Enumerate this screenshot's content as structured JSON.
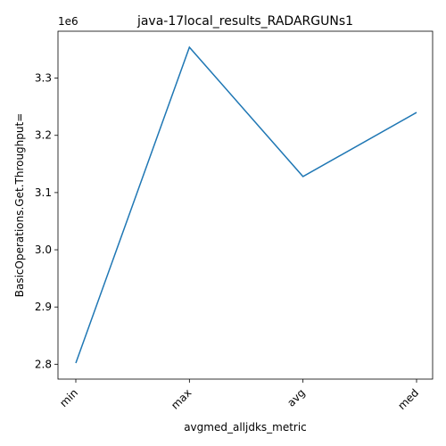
{
  "chart_data": {
    "type": "line",
    "title": "java-17local_results_RADARGUNs1",
    "xlabel": "avgmed_alljdks_metric",
    "ylabel": "BasicOperations.Get.Throughput=",
    "y_offset_text": "1e6",
    "categories": [
      "min",
      "max",
      "avg",
      "med"
    ],
    "series": [
      {
        "values": [
          2802000,
          3354000,
          3128000,
          3240000
        ],
        "color": "#1f77b4"
      }
    ],
    "ylim": [
      2774000,
      3382000
    ],
    "y_ticks": [
      2800000,
      2900000,
      3000000,
      3100000,
      3200000,
      3300000
    ],
    "y_tick_labels": [
      "2.8",
      "2.9",
      "3.0",
      "3.1",
      "3.2",
      "3.3"
    ],
    "grid": false,
    "legend": "none"
  }
}
